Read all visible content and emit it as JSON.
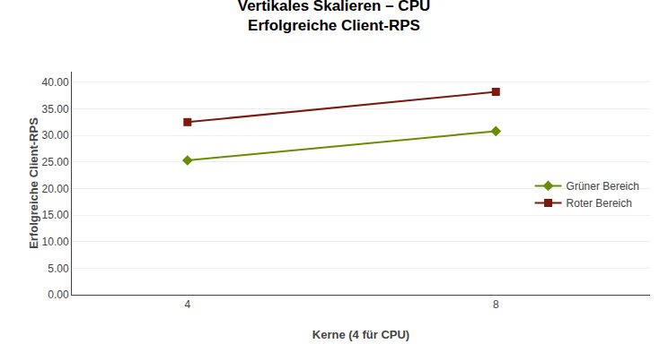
{
  "chart_data": {
    "type": "line",
    "title": "Vertikales Skalieren – CPU",
    "subtitle": "Erfolgreiche Client-RPS",
    "x_label": "Kerne (4 für CPU)",
    "y_label": "Erfolgreiche Client-RPS",
    "x": [
      4,
      8
    ],
    "series": [
      {
        "name": "Grüner Bereich",
        "color": "#6b8c00",
        "marker": "diamond",
        "values": [
          25.3,
          30.8
        ]
      },
      {
        "name": "Roter Bereich",
        "color": "#7b1a10",
        "marker": "square",
        "values": [
          32.5,
          38.2
        ]
      }
    ],
    "xlim": [
      2.5,
      10.0
    ],
    "xticks": [
      4,
      8
    ],
    "ylim": [
      0,
      42
    ],
    "yticks": [
      {
        "value": 0.0,
        "label": "0.00"
      },
      {
        "value": 5.0,
        "label": "5.00"
      },
      {
        "value": 10.0,
        "label": "10.00"
      },
      {
        "value": 15.0,
        "label": "15.00"
      },
      {
        "value": 20.0,
        "label": "20.00"
      },
      {
        "value": 25.0,
        "label": "25.00"
      },
      {
        "value": 30.0,
        "label": "30.00"
      },
      {
        "value": 35.0,
        "label": "35.00"
      },
      {
        "value": 40.0,
        "label": "40.00"
      }
    ],
    "grid": "y",
    "legend": "right"
  }
}
